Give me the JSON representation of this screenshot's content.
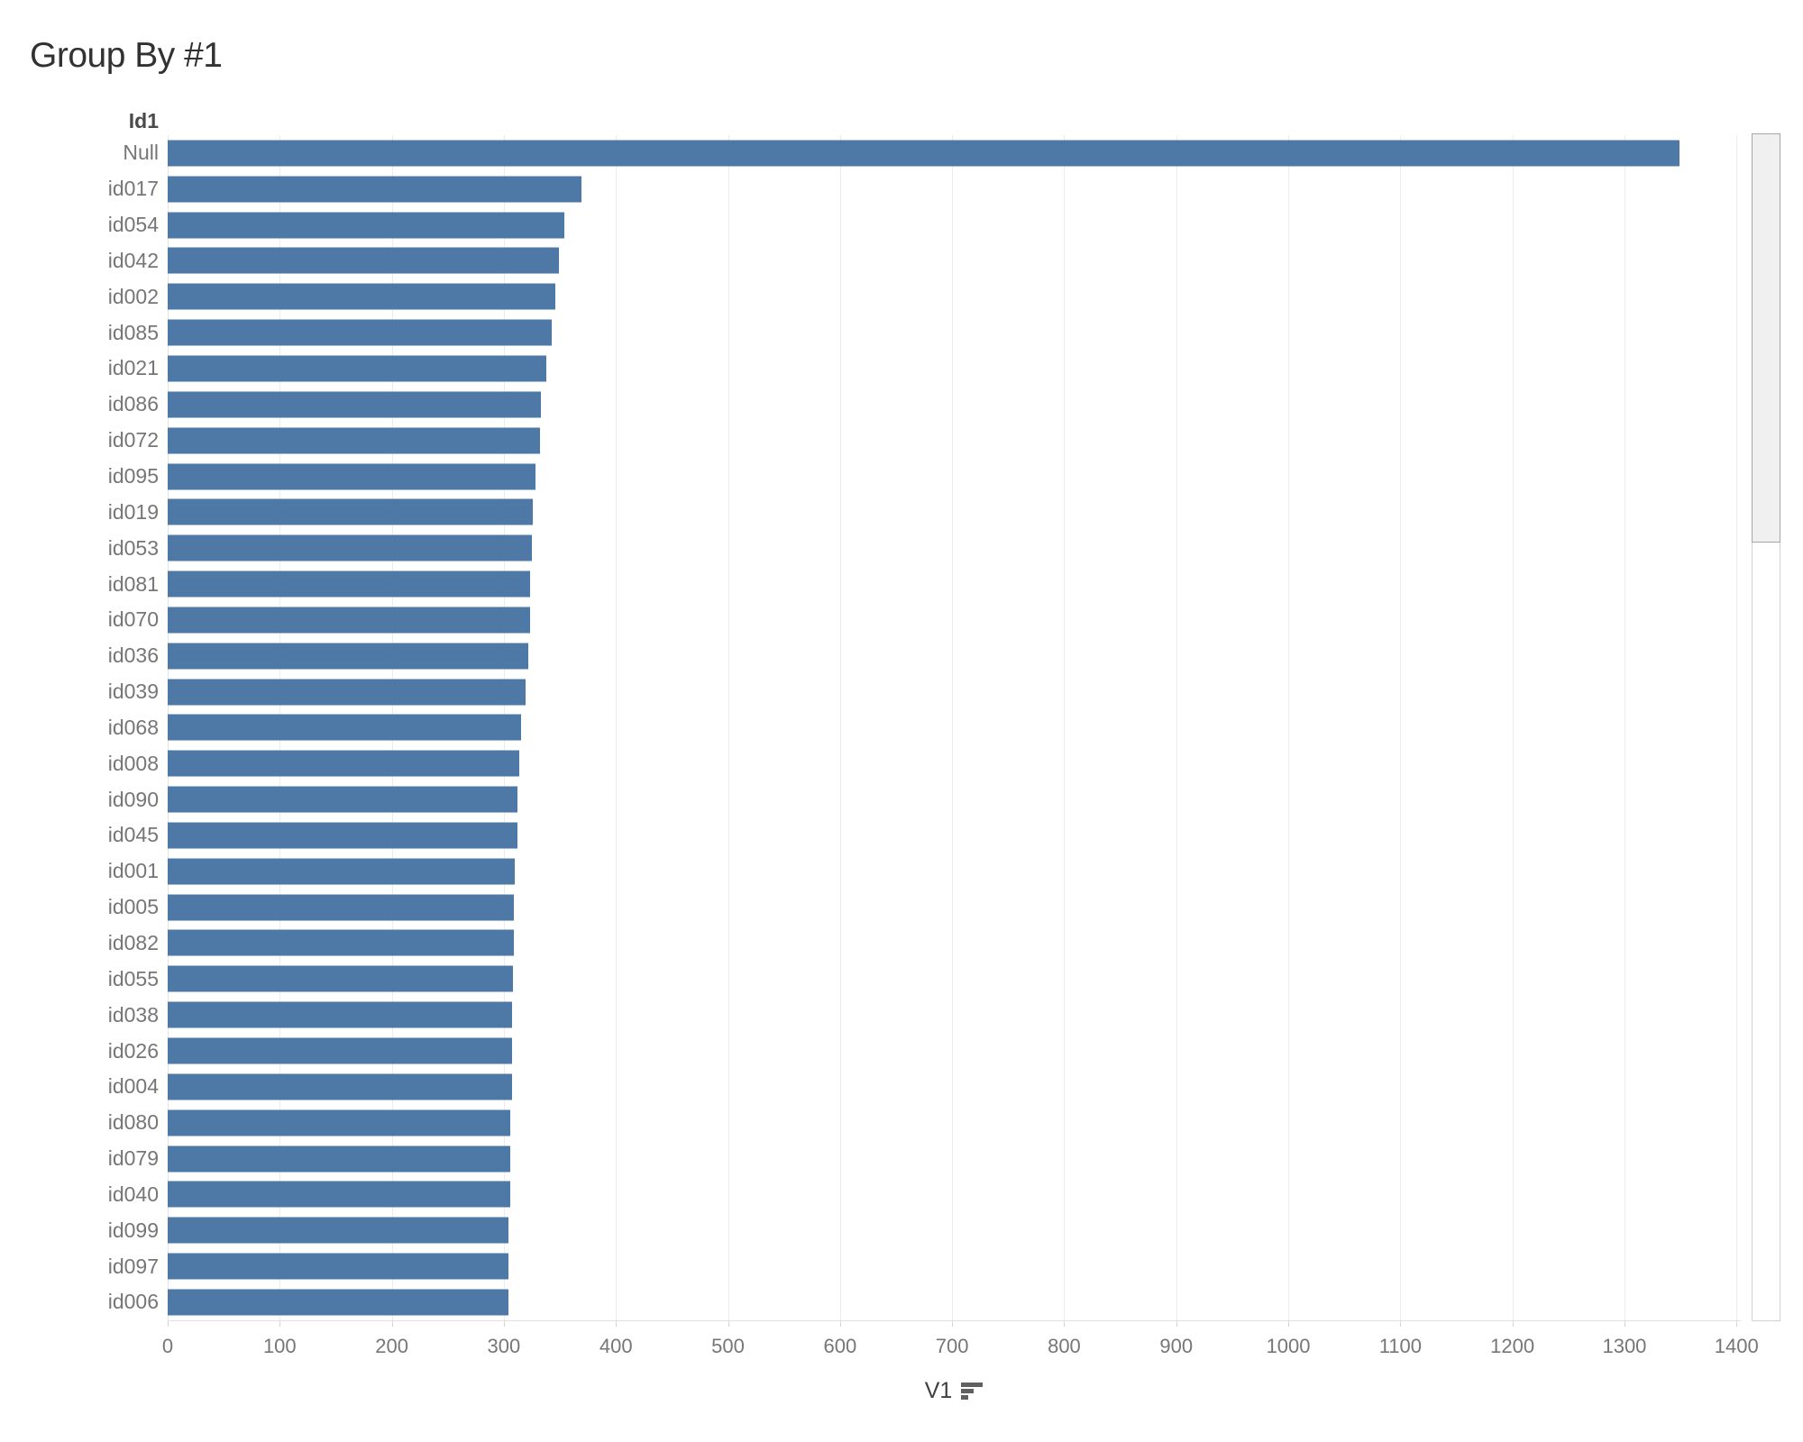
{
  "title": "Group By #1",
  "category_header": "Id1",
  "x_axis": {
    "label": "V1",
    "sort_icon": "sort-descending-icon",
    "tick_labels": [
      "0",
      "100",
      "200",
      "300",
      "400",
      "500",
      "600",
      "700",
      "800",
      "900",
      "1000",
      "1100",
      "1200",
      "1300",
      "1400"
    ]
  },
  "colors": {
    "bar": "#4e79a7",
    "title_text": "#323232",
    "label_text": "#767676"
  },
  "scrollbar": {
    "orientation": "vertical",
    "thumb_position": "top"
  },
  "chart_data": {
    "type": "bar",
    "orientation": "horizontal",
    "title": "Group By #1",
    "xlabel": "V1",
    "ylabel": "Id1",
    "sort": "descending by V1",
    "grid": "vertical major gridlines every 100",
    "legend": "none",
    "xlim": [
      0,
      1403
    ],
    "x_ticks": [
      0,
      100,
      200,
      300,
      400,
      500,
      600,
      700,
      800,
      900,
      1000,
      1100,
      1200,
      1300,
      1400
    ],
    "categories": [
      "Null",
      "id017",
      "id054",
      "id042",
      "id002",
      "id085",
      "id021",
      "id086",
      "id072",
      "id095",
      "id019",
      "id053",
      "id081",
      "id070",
      "id036",
      "id039",
      "id068",
      "id008",
      "id090",
      "id045",
      "id001",
      "id005",
      "id082",
      "id055",
      "id038",
      "id026",
      "id004",
      "id080",
      "id079",
      "id040",
      "id099",
      "id097",
      "id006"
    ],
    "values": [
      1349,
      369,
      354,
      349,
      346,
      343,
      338,
      333,
      332,
      328,
      326,
      325,
      323,
      323,
      322,
      319,
      315,
      314,
      312,
      312,
      310,
      309,
      309,
      308,
      307,
      307,
      307,
      306,
      306,
      306,
      304,
      304,
      304
    ]
  }
}
